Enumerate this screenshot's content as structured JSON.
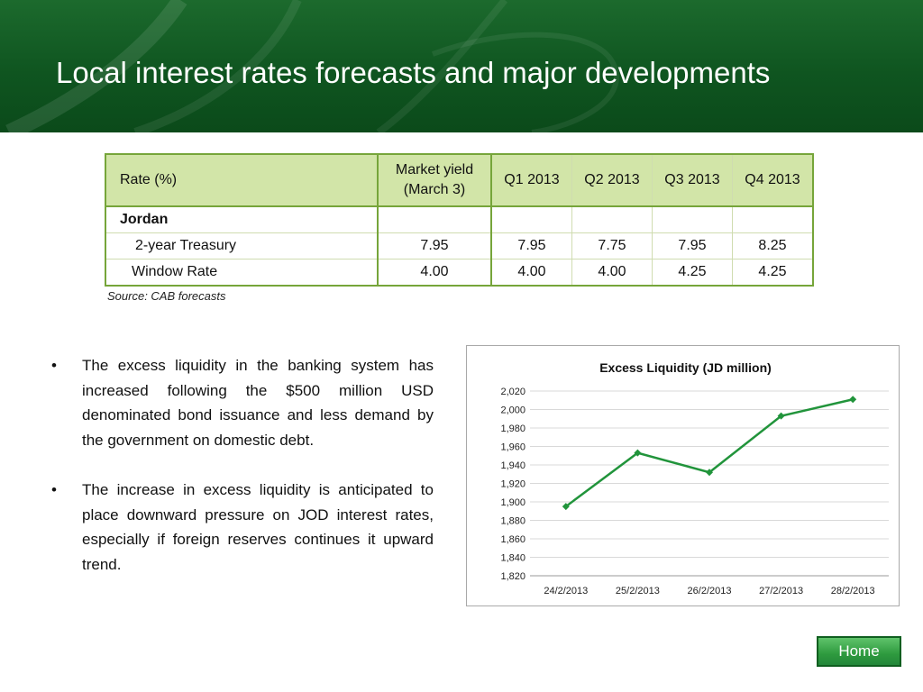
{
  "slide": {
    "title": "Local interest rates forecasts and major developments"
  },
  "table": {
    "headers": [
      "Rate (%)",
      "Market yield",
      "(March 3)",
      "Q1 2013",
      "Q2 2013",
      "Q3 2013",
      "Q4 2013"
    ],
    "group": "Jordan",
    "rows": [
      {
        "label": "2-year Treasury",
        "values": [
          "7.95",
          "7.95",
          "7.75",
          "7.95",
          "8.25"
        ]
      },
      {
        "label": "Window Rate",
        "values": [
          "4.00",
          "4.00",
          "4.00",
          "4.25",
          "4.25"
        ]
      }
    ]
  },
  "source": "Source: CAB forecasts",
  "bullets": [
    "The excess liquidity in the banking system has increased following the $500 million USD denominated bond issuance and less demand by the government on domestic debt.",
    "The increase in excess liquidity is anticipated to place downward pressure on JOD interest rates, especially if foreign reserves continues it upward trend."
  ],
  "bullet_symbol": "•",
  "chart_data": {
    "type": "line",
    "title": "Excess Liquidity (JD million)",
    "categories": [
      "24/2/2013",
      "25/2/2013",
      "26/2/2013",
      "27/2/2013",
      "28/2/2013"
    ],
    "series": [
      {
        "values": [
          1895,
          1953,
          1932,
          1993,
          2011
        ]
      }
    ],
    "ylim": [
      1820,
      2020
    ],
    "yticks": [
      "1,820",
      "1,840",
      "1,860",
      "1,880",
      "1,900",
      "1,920",
      "1,940",
      "1,960",
      "1,980",
      "2,000",
      "2,020"
    ],
    "grid": true,
    "line_color": "#21943b"
  },
  "home_button": "Home",
  "colors": {
    "header_green": "#0f5520",
    "table_header": "#d2e5a8",
    "table_border": "#76a53a"
  }
}
